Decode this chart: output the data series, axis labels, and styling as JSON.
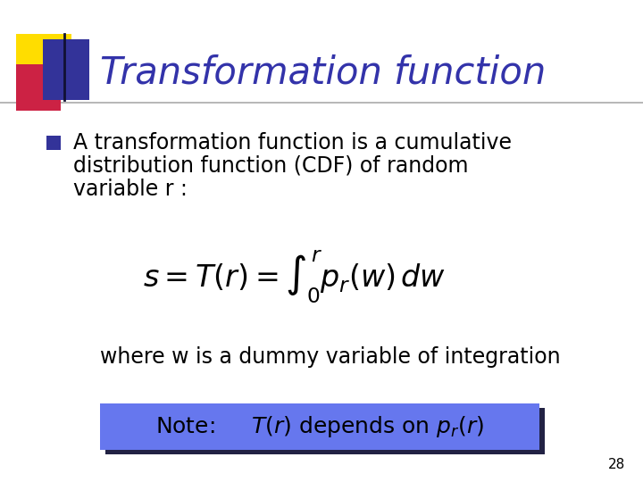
{
  "background_color": "#ffffff",
  "title": "Transformation function",
  "title_color": "#3333aa",
  "title_fontsize": 30,
  "slide_number": "28",
  "bullet_text_line1": "A transformation function is a cumulative",
  "bullet_text_line2": "distribution function (CDF) of random",
  "bullet_text_line3": "variable r :",
  "bullet_color": "#000000",
  "bullet_fontsize": 17,
  "formula": "$s = T(r) = \\int_0^r p_r(w)\\,dw$",
  "formula_fontsize": 24,
  "where_text": "where w is a dummy variable of integration",
  "where_fontsize": 17,
  "note_text": "Note:     $T(r)$ depends on $p_r(r)$",
  "note_bg_color": "#6677ee",
  "note_shadow_color": "#222244",
  "note_fontsize": 18,
  "dec_yellow": "#ffdd00",
  "dec_red": "#cc2244",
  "dec_blue": "#333399",
  "header_line_color": "#aaaaaa",
  "bullet_square_color": "#333399"
}
